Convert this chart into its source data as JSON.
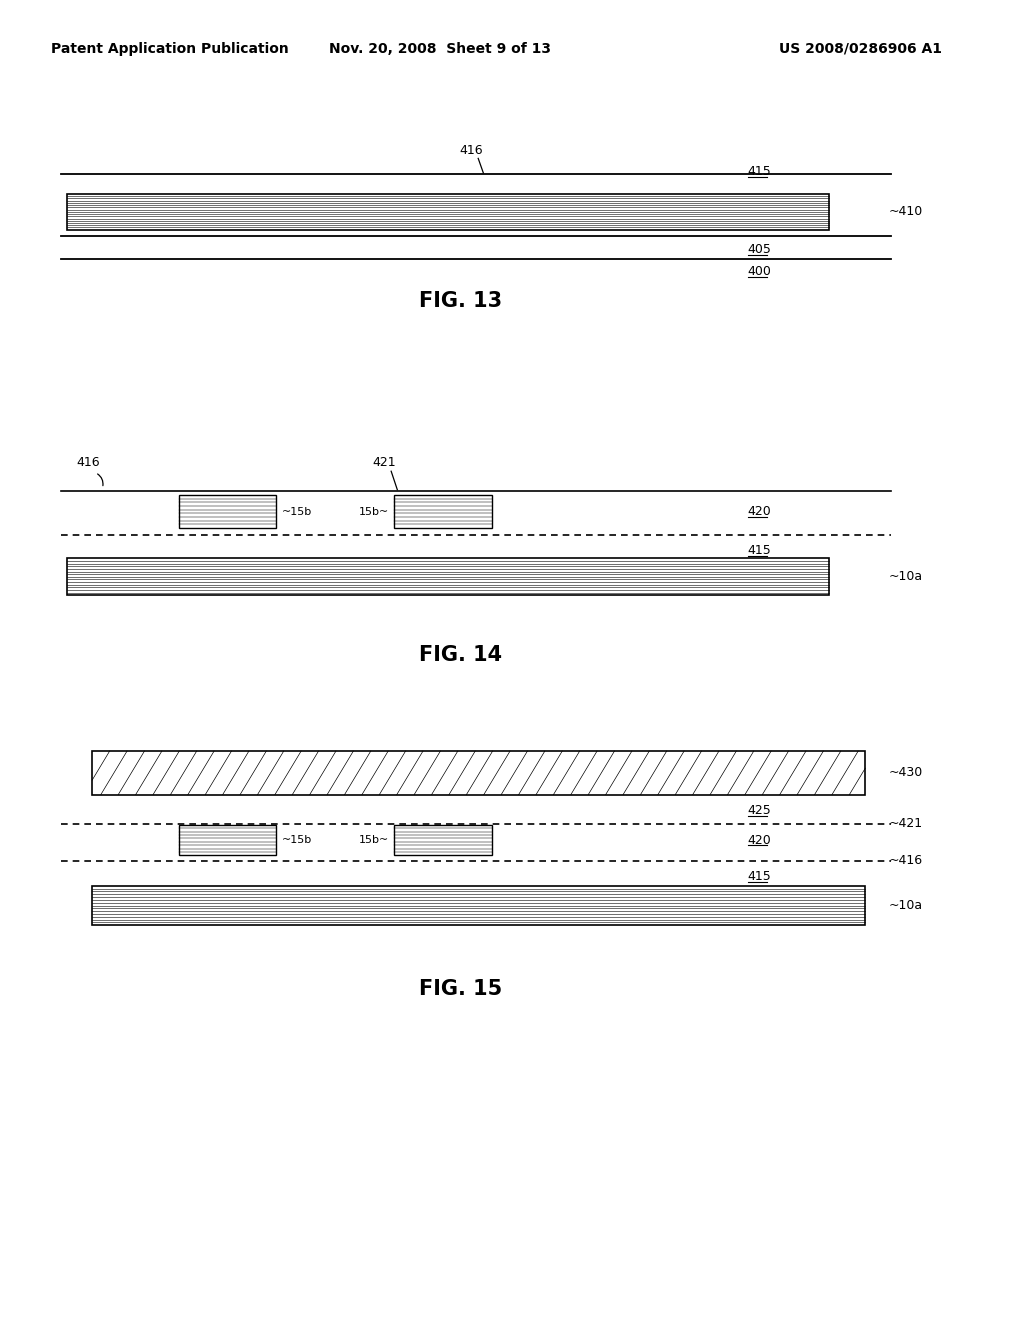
{
  "bg_color": "#ffffff",
  "header_left": "Patent Application Publication",
  "header_mid": "Nov. 20, 2008  Sheet 9 of 13",
  "header_right": "US 2008/0286906 A1",
  "lbl_fs": 9,
  "title_fs": 15,
  "fig13_title": "FIG. 13",
  "fig14_title": "FIG. 14",
  "fig15_title": "FIG. 15"
}
